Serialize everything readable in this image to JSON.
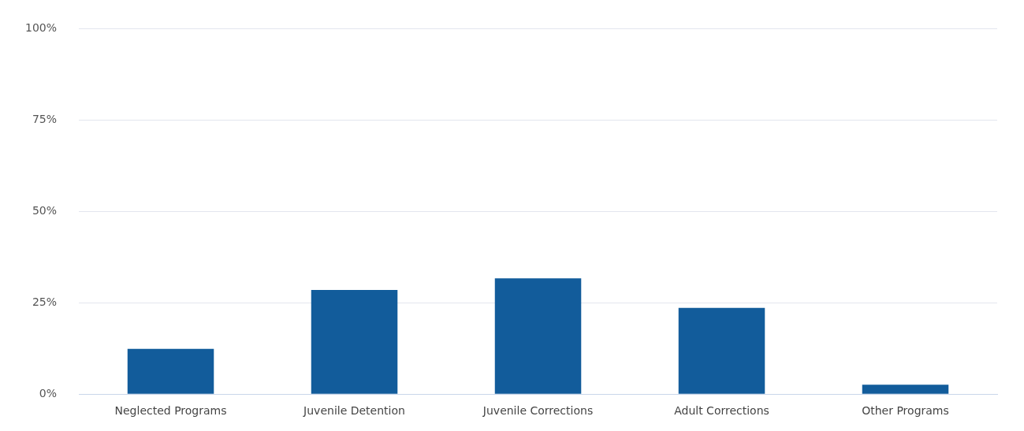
{
  "chart_data": {
    "type": "bar",
    "categories": [
      "Neglected Programs",
      "Juvenile Detention",
      "Juvenile Corrections",
      "Adult Corrections",
      "Other Programs"
    ],
    "values": [
      12.4,
      28.5,
      31.7,
      23.6,
      2.6
    ],
    "color": "#125c9b",
    "ylim": [
      0,
      100
    ],
    "yticks": [
      {
        "value": 0,
        "label": "0%"
      },
      {
        "value": 25,
        "label": "25%"
      },
      {
        "value": 50,
        "label": "50%"
      },
      {
        "value": 75,
        "label": "75%"
      },
      {
        "value": 100,
        "label": "100%"
      }
    ],
    "grid": "y",
    "legend": false
  }
}
